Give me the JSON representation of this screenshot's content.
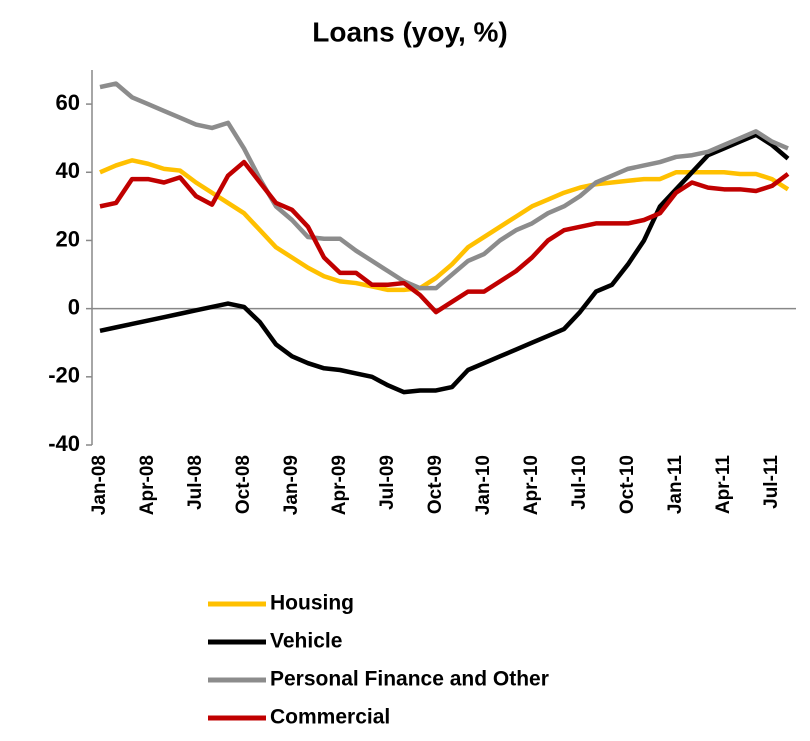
{
  "chart_data": {
    "type": "line",
    "title": "Loans (yoy, %)",
    "categories": [
      "Jan-08",
      null,
      null,
      "Apr-08",
      null,
      null,
      "Jul-08",
      null,
      null,
      "Oct-08",
      null,
      null,
      "Jan-09",
      null,
      null,
      "Apr-09",
      null,
      null,
      "Jul-09",
      null,
      null,
      "Oct-09",
      null,
      null,
      "Jan-10",
      null,
      null,
      "Apr-10",
      null,
      null,
      "Jul-10",
      null,
      null,
      "Oct-10",
      null,
      null,
      "Jan-11",
      null,
      null,
      "Apr-11",
      null,
      null,
      "Jul-11",
      null
    ],
    "series": [
      {
        "name": "Housing",
        "color": "#ffc000",
        "values": [
          40,
          42,
          43.5,
          42.5,
          41,
          40.5,
          37,
          34,
          31,
          28,
          23,
          18,
          15,
          12,
          9.5,
          8,
          7.5,
          6.5,
          5.5,
          5.5,
          6,
          9,
          13,
          18,
          21,
          24,
          27,
          30,
          32,
          34,
          35.5,
          36.5,
          37,
          37.5,
          38,
          38,
          40,
          40,
          40,
          40,
          39.5,
          39.5,
          38,
          35
        ]
      },
      {
        "name": "Vehicle",
        "color": "#000000",
        "values": [
          -6.5,
          -5.5,
          -4.5,
          -3.5,
          -2.5,
          -1.5,
          -0.5,
          0.5,
          1.5,
          0.5,
          -4,
          -10.5,
          -14,
          -16,
          -17.5,
          -18,
          -19,
          -20,
          -22.5,
          -24.5,
          -24,
          -24,
          -23,
          -18,
          -16,
          -14,
          -12,
          -10,
          -8,
          -6,
          -1,
          5,
          7,
          13,
          20,
          30,
          35,
          40,
          45,
          47,
          49,
          51,
          48,
          44
        ]
      },
      {
        "name": "Personal Finance and Other",
        "color": "#8c8c8c",
        "values": [
          65,
          66,
          62,
          60,
          58,
          56,
          54,
          53,
          54.5,
          47,
          38,
          30,
          26,
          21,
          20.5,
          20.5,
          17,
          14,
          11,
          8,
          6,
          6,
          10,
          14,
          16,
          20,
          23,
          25,
          28,
          30,
          33,
          37,
          39,
          41,
          42,
          43,
          44.5,
          45,
          46,
          48,
          50,
          52,
          49,
          47
        ]
      },
      {
        "name": "Commercial",
        "color": "#c00000",
        "values": [
          30,
          31,
          38,
          38,
          37,
          38.5,
          33,
          30.5,
          39,
          43,
          37,
          31,
          29,
          24,
          15,
          10.5,
          10.5,
          7,
          7,
          7.5,
          4,
          -1,
          2,
          5,
          5,
          8,
          11,
          15,
          20,
          23,
          24,
          25,
          25,
          25,
          26,
          28,
          34,
          37,
          35.5,
          35,
          35,
          34.5,
          36,
          39.5
        ]
      }
    ],
    "ylim": [
      -40,
      70
    ],
    "yticks": [
      -40,
      -20,
      0,
      20,
      40,
      60
    ]
  }
}
